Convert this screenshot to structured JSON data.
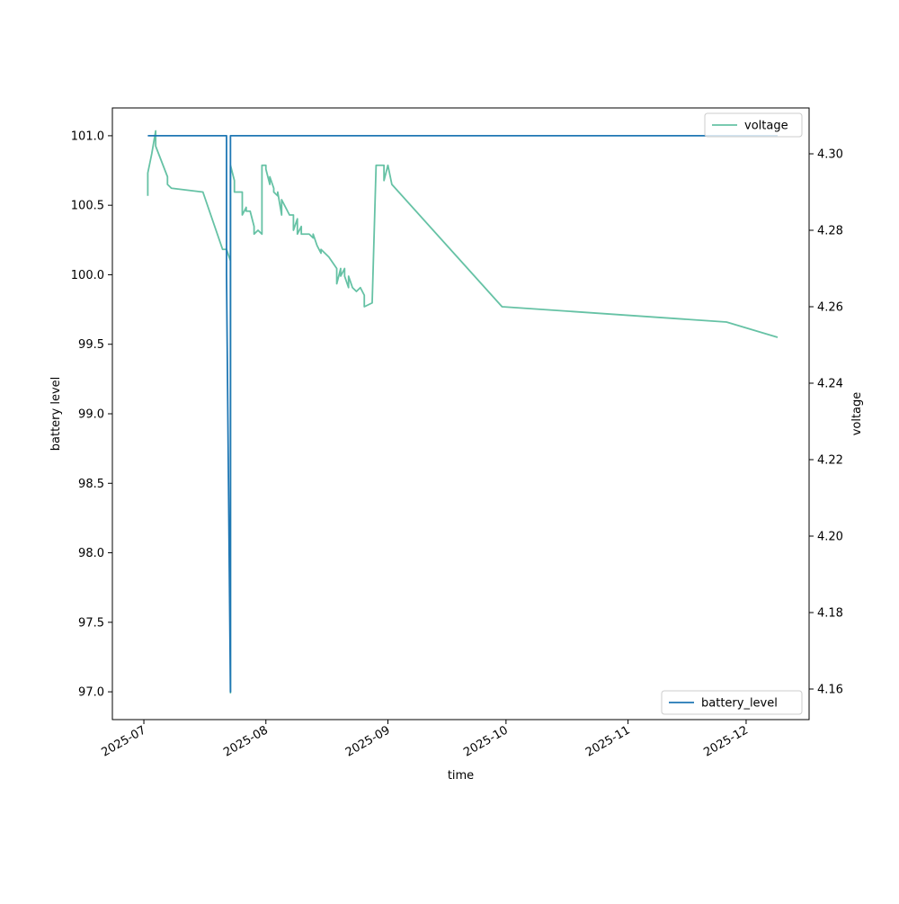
{
  "chart_data": {
    "type": "line",
    "title": "",
    "xlabel": "time",
    "ylabel_left": "battery level",
    "ylabel_right": "voltage",
    "x_type": "date",
    "x_ticks": [
      "2025-07",
      "2025-08",
      "2025-09",
      "2025-10",
      "2025-11",
      "2025-12"
    ],
    "x_tick_dates": [
      "2025-07-01",
      "2025-08-01",
      "2025-09-01",
      "2025-10-01",
      "2025-11-01",
      "2025-12-01"
    ],
    "xlim": [
      "2025-06-23",
      "2025-12-17"
    ],
    "ylim_left": [
      96.8,
      101.2
    ],
    "y_ticks_left": [
      "97.0",
      "97.5",
      "98.0",
      "98.5",
      "99.0",
      "99.5",
      "100.0",
      "100.5",
      "101.0"
    ],
    "ylim_right": [
      4.152,
      4.312
    ],
    "y_ticks_right": [
      "4.16",
      "4.18",
      "4.20",
      "4.22",
      "4.24",
      "4.26",
      "4.28",
      "4.30"
    ],
    "grid": false,
    "series": [
      {
        "name": "battery_level",
        "axis": "left",
        "color": "#1f77b4",
        "points": [
          [
            "2025-07-02",
            101.0
          ],
          [
            "2025-07-22",
            101.0
          ],
          [
            "2025-07-22",
            100.0
          ],
          [
            "2025-07-23",
            97.0
          ],
          [
            "2025-07-23",
            101.0
          ],
          [
            "2025-12-09",
            101.0
          ]
        ]
      },
      {
        "name": "voltage",
        "axis": "right",
        "color": "#66c2a5",
        "points": [
          [
            "2025-07-02",
            4.289
          ],
          [
            "2025-07-02",
            4.295
          ],
          [
            "2025-07-03",
            4.3
          ],
          [
            "2025-07-04",
            4.306
          ],
          [
            "2025-07-04",
            4.302
          ],
          [
            "2025-07-07",
            4.294
          ],
          [
            "2025-07-07",
            4.292
          ],
          [
            "2025-07-08",
            4.291
          ],
          [
            "2025-07-16",
            4.29
          ],
          [
            "2025-07-21",
            4.275
          ],
          [
            "2025-07-22",
            4.275
          ],
          [
            "2025-07-23",
            4.272
          ],
          [
            "2025-07-23",
            4.159
          ],
          [
            "2025-07-23",
            4.297
          ],
          [
            "2025-07-24",
            4.293
          ],
          [
            "2025-07-24",
            4.29
          ],
          [
            "2025-07-26",
            4.29
          ],
          [
            "2025-07-26",
            4.284
          ],
          [
            "2025-07-27",
            4.286
          ],
          [
            "2025-07-27",
            4.285
          ],
          [
            "2025-07-28",
            4.285
          ],
          [
            "2025-07-29",
            4.281
          ],
          [
            "2025-07-29",
            4.279
          ],
          [
            "2025-07-30",
            4.28
          ],
          [
            "2025-07-31",
            4.279
          ],
          [
            "2025-07-31",
            4.297
          ],
          [
            "2025-08-01",
            4.297
          ],
          [
            "2025-08-01",
            4.296
          ],
          [
            "2025-08-02",
            4.292
          ],
          [
            "2025-08-02",
            4.294
          ],
          [
            "2025-08-03",
            4.291
          ],
          [
            "2025-08-03",
            4.29
          ],
          [
            "2025-08-04",
            4.289
          ],
          [
            "2025-08-04",
            4.29
          ],
          [
            "2025-08-05",
            4.284
          ],
          [
            "2025-08-05",
            4.288
          ],
          [
            "2025-08-07",
            4.284
          ],
          [
            "2025-08-08",
            4.284
          ],
          [
            "2025-08-08",
            4.282
          ],
          [
            "2025-08-08",
            4.28
          ],
          [
            "2025-08-09",
            4.283
          ],
          [
            "2025-08-09",
            4.279
          ],
          [
            "2025-08-10",
            4.281
          ],
          [
            "2025-08-10",
            4.279
          ],
          [
            "2025-08-12",
            4.279
          ],
          [
            "2025-08-13",
            4.278
          ],
          [
            "2025-08-13",
            4.279
          ],
          [
            "2025-08-14",
            4.276
          ],
          [
            "2025-08-15",
            4.274
          ],
          [
            "2025-08-15",
            4.275
          ],
          [
            "2025-08-16",
            4.274
          ],
          [
            "2025-08-17",
            4.273
          ],
          [
            "2025-08-19",
            4.27
          ],
          [
            "2025-08-19",
            4.266
          ],
          [
            "2025-08-20",
            4.27
          ],
          [
            "2025-08-20",
            4.268
          ],
          [
            "2025-08-21",
            4.27
          ],
          [
            "2025-08-21",
            4.268
          ],
          [
            "2025-08-22",
            4.265
          ],
          [
            "2025-08-22",
            4.268
          ],
          [
            "2025-08-23",
            4.265
          ],
          [
            "2025-08-24",
            4.264
          ],
          [
            "2025-08-25",
            4.265
          ],
          [
            "2025-08-26",
            4.263
          ],
          [
            "2025-08-26",
            4.26
          ],
          [
            "2025-08-28",
            4.261
          ],
          [
            "2025-08-29",
            4.297
          ],
          [
            "2025-08-31",
            4.297
          ],
          [
            "2025-08-31",
            4.293
          ],
          [
            "2025-09-01",
            4.297
          ],
          [
            "2025-09-02",
            4.292
          ],
          [
            "2025-09-30",
            4.26
          ],
          [
            "2025-11-26",
            4.256
          ],
          [
            "2025-12-09",
            4.252
          ]
        ]
      }
    ],
    "legends": [
      {
        "label": "voltage",
        "placement": "top-right",
        "series": "voltage"
      },
      {
        "label": "battery_level",
        "placement": "bottom-right",
        "series": "battery_level"
      }
    ]
  }
}
